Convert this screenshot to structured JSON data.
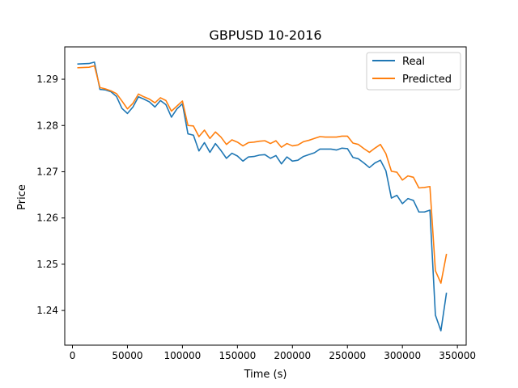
{
  "chart_data": {
    "type": "line",
    "title": "GBPUSD 10-2016",
    "xlabel": "Time (s)",
    "ylabel": "Price",
    "xlim": [
      -7000,
      358000
    ],
    "ylim": [
      1.2325,
      1.297
    ],
    "xticks": [
      0,
      50000,
      100000,
      150000,
      200000,
      250000,
      300000,
      350000
    ],
    "yticks": [
      1.24,
      1.25,
      1.26,
      1.27,
      1.28,
      1.29
    ],
    "ytick_labels": [
      "1.24",
      "1.25",
      "1.26",
      "1.27",
      "1.28",
      "1.29"
    ],
    "grid": false,
    "legend_position": "top-right",
    "series": [
      {
        "name": "Real",
        "color": "#1f77b4",
        "points": [
          [
            5000,
            1.2933
          ],
          [
            15000,
            1.2934
          ],
          [
            20000,
            1.2937
          ],
          [
            25000,
            1.2878
          ],
          [
            30000,
            1.2877
          ],
          [
            35000,
            1.2873
          ],
          [
            40000,
            1.2863
          ],
          [
            45000,
            1.2837
          ],
          [
            50000,
            1.2826
          ],
          [
            55000,
            1.284
          ],
          [
            60000,
            1.2862
          ],
          [
            65000,
            1.2857
          ],
          [
            70000,
            1.2851
          ],
          [
            75000,
            1.284
          ],
          [
            80000,
            1.2854
          ],
          [
            85000,
            1.2845
          ],
          [
            90000,
            1.2818
          ],
          [
            95000,
            1.2836
          ],
          [
            100000,
            1.2847
          ],
          [
            105000,
            1.2782
          ],
          [
            110000,
            1.2779
          ],
          [
            115000,
            1.2745
          ],
          [
            120000,
            1.2763
          ],
          [
            125000,
            1.2742
          ],
          [
            130000,
            1.2761
          ],
          [
            135000,
            1.2746
          ],
          [
            140000,
            1.2729
          ],
          [
            145000,
            1.274
          ],
          [
            150000,
            1.2734
          ],
          [
            155000,
            1.2723
          ],
          [
            160000,
            1.2732
          ],
          [
            165000,
            1.2733
          ],
          [
            170000,
            1.2736
          ],
          [
            175000,
            1.2737
          ],
          [
            180000,
            1.2729
          ],
          [
            185000,
            1.2735
          ],
          [
            190000,
            1.2717
          ],
          [
            195000,
            1.2732
          ],
          [
            200000,
            1.2723
          ],
          [
            205000,
            1.2725
          ],
          [
            210000,
            1.2733
          ],
          [
            215000,
            1.2737
          ],
          [
            220000,
            1.2741
          ],
          [
            225000,
            1.2749
          ],
          [
            230000,
            1.2749
          ],
          [
            235000,
            1.2749
          ],
          [
            240000,
            1.2747
          ],
          [
            245000,
            1.2751
          ],
          [
            250000,
            1.275
          ],
          [
            255000,
            1.2731
          ],
          [
            260000,
            1.2728
          ],
          [
            265000,
            1.2719
          ],
          [
            270000,
            1.2709
          ],
          [
            275000,
            1.2719
          ],
          [
            280000,
            1.2725
          ],
          [
            285000,
            1.2702
          ],
          [
            290000,
            1.2643
          ],
          [
            295000,
            1.2649
          ],
          [
            300000,
            1.2631
          ],
          [
            305000,
            1.2642
          ],
          [
            310000,
            1.2638
          ],
          [
            315000,
            1.2613
          ],
          [
            320000,
            1.2613
          ],
          [
            325000,
            1.2617
          ],
          [
            330000,
            1.239
          ],
          [
            335000,
            1.2356
          ],
          [
            340000,
            1.2437
          ]
        ]
      },
      {
        "name": "Predicted",
        "color": "#ff7f0e",
        "points": [
          [
            5000,
            1.2925
          ],
          [
            15000,
            1.2926
          ],
          [
            20000,
            1.2929
          ],
          [
            25000,
            1.2882
          ],
          [
            30000,
            1.2879
          ],
          [
            35000,
            1.2875
          ],
          [
            40000,
            1.2869
          ],
          [
            45000,
            1.2853
          ],
          [
            50000,
            1.2836
          ],
          [
            55000,
            1.2848
          ],
          [
            60000,
            1.2868
          ],
          [
            65000,
            1.2862
          ],
          [
            70000,
            1.2857
          ],
          [
            75000,
            1.2849
          ],
          [
            80000,
            1.286
          ],
          [
            85000,
            1.2854
          ],
          [
            90000,
            1.2831
          ],
          [
            95000,
            1.2842
          ],
          [
            100000,
            1.2853
          ],
          [
            105000,
            1.28
          ],
          [
            110000,
            1.2799
          ],
          [
            115000,
            1.2776
          ],
          [
            120000,
            1.279
          ],
          [
            125000,
            1.2772
          ],
          [
            130000,
            1.2786
          ],
          [
            135000,
            1.2775
          ],
          [
            140000,
            1.2759
          ],
          [
            145000,
            1.2769
          ],
          [
            150000,
            1.2764
          ],
          [
            155000,
            1.2756
          ],
          [
            160000,
            1.2763
          ],
          [
            165000,
            1.2764
          ],
          [
            170000,
            1.2766
          ],
          [
            175000,
            1.2767
          ],
          [
            180000,
            1.2761
          ],
          [
            185000,
            1.2767
          ],
          [
            190000,
            1.2753
          ],
          [
            195000,
            1.2761
          ],
          [
            200000,
            1.2756
          ],
          [
            205000,
            1.2758
          ],
          [
            210000,
            1.2765
          ],
          [
            215000,
            1.2768
          ],
          [
            220000,
            1.2772
          ],
          [
            225000,
            1.2776
          ],
          [
            230000,
            1.2775
          ],
          [
            235000,
            1.2775
          ],
          [
            240000,
            1.2775
          ],
          [
            245000,
            1.2777
          ],
          [
            250000,
            1.2777
          ],
          [
            255000,
            1.2762
          ],
          [
            260000,
            1.2759
          ],
          [
            265000,
            1.275
          ],
          [
            270000,
            1.2742
          ],
          [
            275000,
            1.2751
          ],
          [
            280000,
            1.2759
          ],
          [
            285000,
            1.2739
          ],
          [
            290000,
            1.2701
          ],
          [
            295000,
            1.2699
          ],
          [
            300000,
            1.2682
          ],
          [
            305000,
            1.2691
          ],
          [
            310000,
            1.2688
          ],
          [
            315000,
            1.2665
          ],
          [
            320000,
            1.2666
          ],
          [
            325000,
            1.2668
          ],
          [
            330000,
            1.2486
          ],
          [
            335000,
            1.2459
          ],
          [
            340000,
            1.2521
          ]
        ]
      }
    ]
  }
}
